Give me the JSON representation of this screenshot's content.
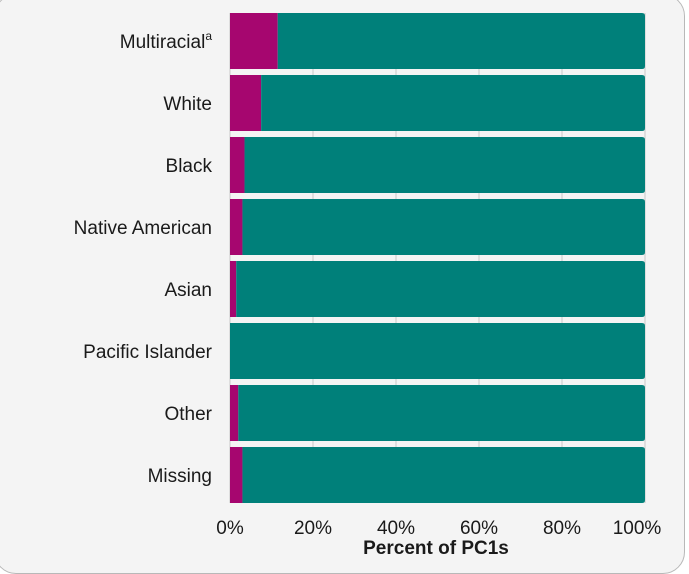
{
  "chart_data": {
    "type": "bar",
    "orientation": "horizontal",
    "stacked": true,
    "categories": [
      "Multiracial",
      "White",
      "Black",
      "Native American",
      "Asian",
      "Pacific Islander",
      "Other",
      "Missing"
    ],
    "category_footnotes": {
      "Multiracial": "a"
    },
    "series": [
      {
        "values": [
          11.5,
          7.5,
          3.5,
          3.0,
          1.5,
          0.0,
          2.0,
          3.0
        ],
        "color": "#a6066f"
      },
      {
        "values": [
          88.5,
          92.5,
          96.5,
          97.0,
          98.5,
          100.0,
          98.0,
          97.0
        ],
        "color": "#00807a"
      }
    ],
    "xlabel": "Percent of PC1s",
    "xticks": [
      "0%",
      "20%",
      "40%",
      "60%",
      "80%",
      "100%"
    ],
    "xlim": [
      0,
      100
    ],
    "grid": {
      "vertical": true,
      "color": "#c8c8c8"
    },
    "panel_background": "#f4f4f4"
  }
}
